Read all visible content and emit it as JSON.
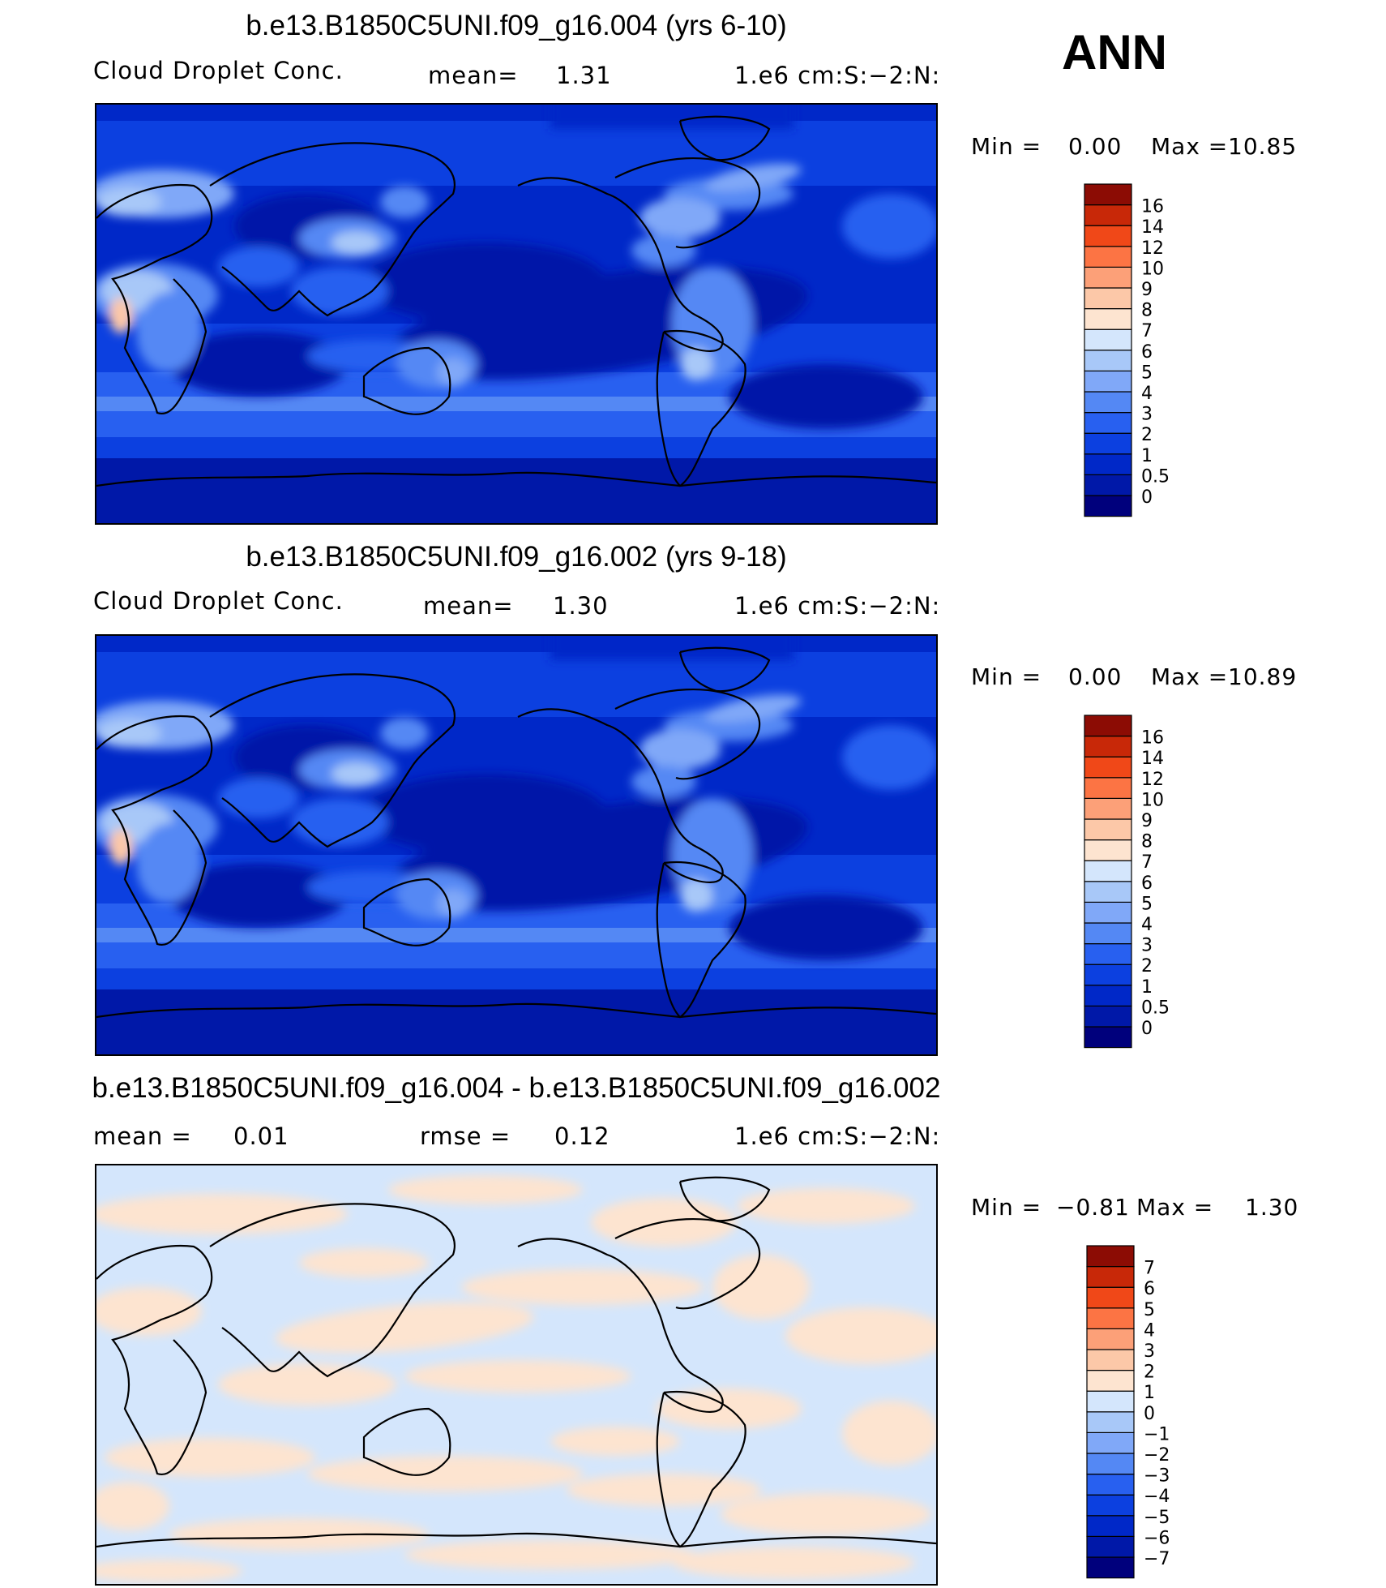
{
  "season": "ANN",
  "chart_data": [
    {
      "type": "heatmap",
      "title": "b.e13.B1850C5UNI.f09_g16.004 (yrs 6-10)",
      "variable": "Cloud Droplet Conc.",
      "stat_label": "mean=",
      "stat_value": "1.31",
      "units": "1.e6 cm:S:-2:N:",
      "min_label": "Min =",
      "min_value": "0.00",
      "max_label": "Max =",
      "max_value": "10.85",
      "levels": [
        "0",
        "0.5",
        "1",
        "2",
        "3",
        "4",
        "5",
        "6",
        "7",
        "8",
        "9",
        "10",
        "12",
        "14",
        "16"
      ],
      "colors": [
        "#00007c",
        "#0018a8",
        "#0028c8",
        "#0c40e0",
        "#2860f0",
        "#5488f4",
        "#80a8f8",
        "#a8c8f8",
        "#d4e6fc",
        "#fde4d0",
        "#fcc8a8",
        "#fca078",
        "#fc7444",
        "#f04818",
        "#c82808",
        "#8c0c04"
      ]
    },
    {
      "type": "heatmap",
      "title": "b.e13.B1850C5UNI.f09_g16.002 (yrs 9-18)",
      "variable": "Cloud Droplet Conc.",
      "stat_label": "mean=",
      "stat_value": "1.30",
      "units": "1.e6 cm:S:-2:N:",
      "min_label": "Min =",
      "min_value": "0.00",
      "max_label": "Max =",
      "max_value": "10.89",
      "levels": [
        "0",
        "0.5",
        "1",
        "2",
        "3",
        "4",
        "5",
        "6",
        "7",
        "8",
        "9",
        "10",
        "12",
        "14",
        "16"
      ],
      "colors": [
        "#00007c",
        "#0018a8",
        "#0028c8",
        "#0c40e0",
        "#2860f0",
        "#5488f4",
        "#80a8f8",
        "#a8c8f8",
        "#d4e6fc",
        "#fde4d0",
        "#fcc8a8",
        "#fca078",
        "#fc7444",
        "#f04818",
        "#c82808",
        "#8c0c04"
      ]
    },
    {
      "type": "heatmap",
      "title": "b.e13.B1850C5UNI.f09_g16.004 - b.e13.B1850C5UNI.f09_g16.002",
      "mean_label": "mean =",
      "mean_value": "0.01",
      "rmse_label": "rmse =",
      "rmse_value": "0.12",
      "units": "1.e6 cm:S:-2:N:",
      "min_label": "Min =",
      "min_value": "-0.81",
      "max_label": "Max =",
      "max_value": "1.30",
      "levels": [
        "-7",
        "-6",
        "-5",
        "-4",
        "-3",
        "-2",
        "-1",
        "0",
        "1",
        "2",
        "3",
        "4",
        "5",
        "6",
        "7"
      ],
      "colors": [
        "#00007c",
        "#0018a8",
        "#0028c8",
        "#0c40e0",
        "#2860f0",
        "#5488f4",
        "#80a8f8",
        "#a8c8f8",
        "#d4e6fc",
        "#fde4d0",
        "#fcc8a8",
        "#fca078",
        "#fc7444",
        "#f04818",
        "#c82808",
        "#8c0c04"
      ]
    }
  ]
}
